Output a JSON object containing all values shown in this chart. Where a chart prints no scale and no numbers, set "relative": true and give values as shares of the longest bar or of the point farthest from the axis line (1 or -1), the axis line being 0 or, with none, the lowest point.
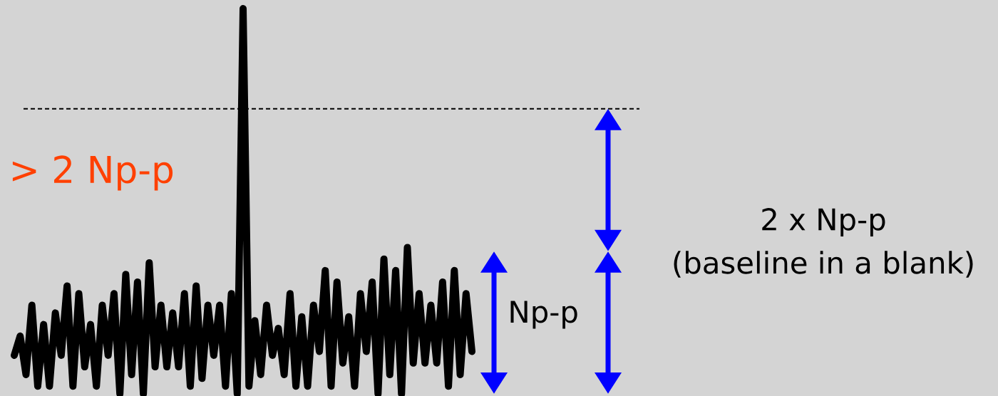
{
  "chart_data": {
    "type": "line",
    "relative": true,
    "categories": [
      null,
      null,
      null,
      null,
      null,
      null,
      null,
      null,
      null,
      null,
      null,
      null,
      null,
      null,
      null,
      null,
      null,
      null,
      null,
      null,
      null,
      null,
      null,
      null,
      null,
      null,
      null,
      null,
      null,
      null,
      null,
      null,
      null,
      null,
      null,
      null,
      null,
      null,
      null,
      null,
      null,
      null,
      null,
      null,
      null,
      null,
      null,
      null,
      null,
      null,
      null,
      null,
      null,
      null,
      null,
      null,
      null,
      null,
      null,
      null,
      null,
      null,
      null,
      null,
      null,
      null,
      null,
      null,
      null,
      null,
      null,
      null,
      null,
      null,
      null,
      null,
      null,
      null,
      null
    ],
    "series": [
      {
        "color": "#000000",
        "values": [
          0.1,
          0.15,
          0.05,
          0.23,
          0.02,
          0.18,
          0.02,
          0.21,
          0.1,
          0.28,
          0.02,
          0.26,
          0.07,
          0.18,
          0.02,
          0.23,
          0.1,
          0.26,
          0,
          0.31,
          0.05,
          0.29,
          0,
          0.34,
          0.07,
          0.23,
          0.07,
          0.21,
          0.07,
          0.26,
          0.02,
          0.28,
          0.04,
          0.23,
          0.1,
          0.23,
          0.02,
          0.26,
          0,
          1,
          0.02,
          0.19,
          0.05,
          0.23,
          0.1,
          0.17,
          0.05,
          0.26,
          0.02,
          0.2,
          0.02,
          0.23,
          0.11,
          0.32,
          0.02,
          0.29,
          0.08,
          0.2,
          0.02,
          0.26,
          0.11,
          0.29,
          0,
          0.35,
          0.05,
          0.32,
          0,
          0.38,
          0.08,
          0.26,
          0.08,
          0.23,
          0.08,
          0.29,
          0.02,
          0.32,
          0.05,
          0.26,
          0.11
        ]
      }
    ],
    "line_style": "solid",
    "marker": "none",
    "ref_lines": [
      {
        "axis": "y",
        "value": 0.74,
        "color": "#000000",
        "line_style": "dashed"
      }
    ],
    "annotations": [
      "> 2 Np-p",
      "Np-p",
      "2 x Np-p",
      "(baseline in a blank)"
    ]
  }
}
